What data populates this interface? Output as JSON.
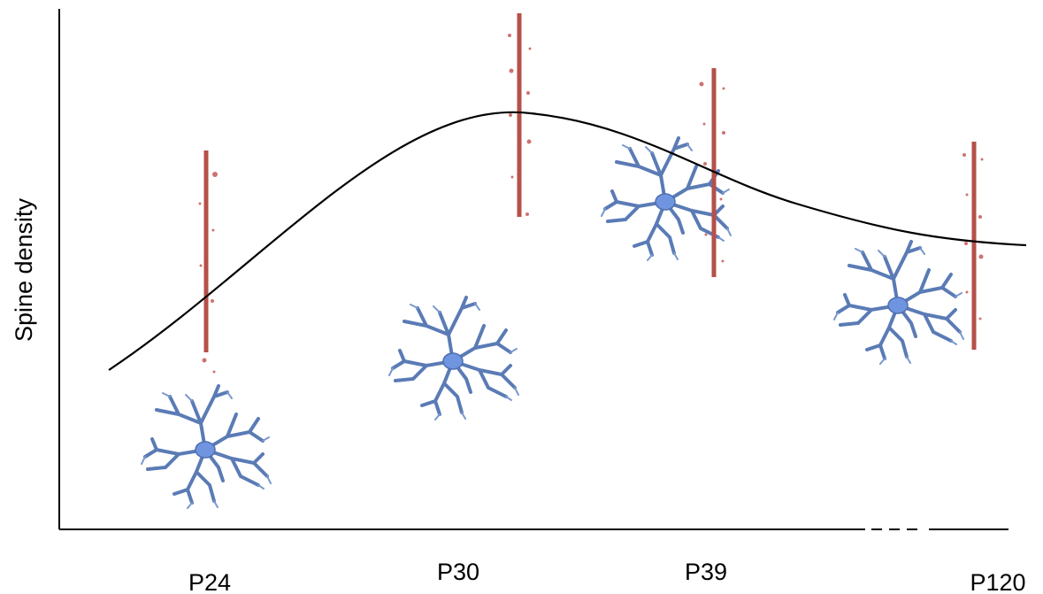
{
  "y_axis": {
    "label": "Spine density"
  },
  "x_axis": {
    "labels": [
      "P24",
      "P30",
      "P39",
      "P120"
    ]
  }
}
